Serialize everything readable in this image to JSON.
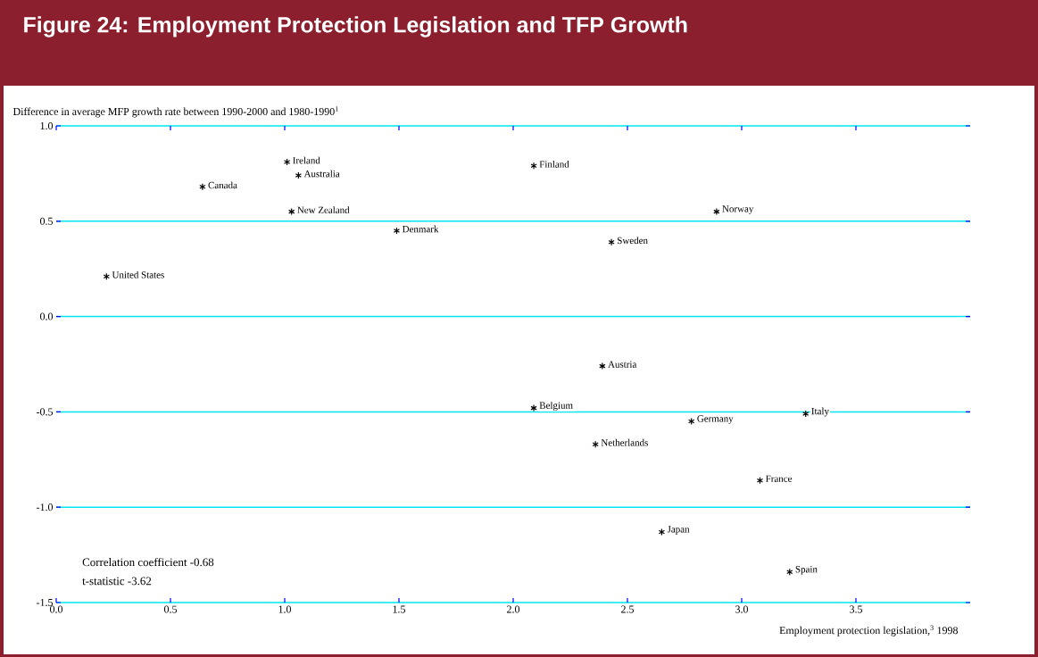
{
  "chart_data": {
    "type": "scatter",
    "title": "Figure 24: Employment Protection Legislation and TFP Growth",
    "xlabel": "Employment protection legislation,$^{3}$ 1998",
    "ylabel": "Difference in average MFP growth rate between 1990-2000 and 1980-1990$^{1}$",
    "x": [
      0.22,
      0.64,
      1.01,
      1.06,
      1.03,
      1.49,
      2.09,
      2.43,
      2.89,
      2.39,
      2.09,
      3.28,
      2.78,
      2.36,
      3.08,
      2.65,
      3.21
    ],
    "values": [
      0.21,
      0.68,
      0.81,
      0.74,
      0.55,
      0.45,
      0.79,
      0.39,
      0.55,
      -0.26,
      -0.48,
      -0.51,
      -0.55,
      -0.67,
      -0.86,
      -1.13,
      -1.34
    ],
    "color": "#000000",
    "marker": "cross",
    "grid": "y",
    "xlim": [
      0,
      4.0
    ],
    "ylim": [
      -1.5,
      1.0
    ],
    "xticks": [
      {
        "value": 0,
        "label": "0.0"
      },
      {
        "value": 0.5,
        "label": "0.5"
      },
      {
        "value": 1,
        "label": "1.0"
      },
      {
        "value": 1.5,
        "label": "1.5"
      },
      {
        "value": 2,
        "label": "2.0"
      },
      {
        "value": 2.5,
        "label": "2.5"
      },
      {
        "value": 3,
        "label": "3.0"
      },
      {
        "value": 3.5,
        "label": "3.5"
      }
    ],
    "yticks": [
      {
        "value": -1.5,
        "label": "-1.5"
      },
      {
        "value": -1,
        "label": "-1.0"
      },
      {
        "value": -0.5,
        "label": "-0.5"
      },
      {
        "value": 0,
        "label": "0.0"
      },
      {
        "value": 0.5,
        "label": "0.5"
      },
      {
        "value": 1,
        "label": "1.0"
      }
    ],
    "annotations": [
      {
        "text": "United States",
        "x": 0.22,
        "y": 0.21
      },
      {
        "text": "Canada",
        "x": 0.64,
        "y": 0.68
      },
      {
        "text": "Ireland",
        "x": 1.01,
        "y": 0.81
      },
      {
        "text": "Australia",
        "x": 1.06,
        "y": 0.74
      },
      {
        "text": "New Zealand",
        "x": 1.03,
        "y": 0.55
      },
      {
        "text": "Denmark",
        "x": 1.49,
        "y": 0.45
      },
      {
        "text": "Finland",
        "x": 2.09,
        "y": 0.79
      },
      {
        "text": "Sweden",
        "x": 2.43,
        "y": 0.39
      },
      {
        "text": "Norway",
        "x": 2.89,
        "y": 0.55
      },
      {
        "text": "Austria",
        "x": 2.39,
        "y": -0.26
      },
      {
        "text": "Belgium",
        "x": 2.09,
        "y": -0.48
      },
      {
        "text": "Italy",
        "x": 3.28,
        "y": -0.51
      },
      {
        "text": "Germany",
        "x": 2.78,
        "y": -0.55
      },
      {
        "text": "Netherlands",
        "x": 2.36,
        "y": -0.67
      },
      {
        "text": "France",
        "x": 3.08,
        "y": -0.86
      },
      {
        "text": "Japan",
        "x": 2.65,
        "y": -1.13
      },
      {
        "text": "Spain",
        "x": 3.21,
        "y": -1.34
      },
      "Correlation coefficient -0.68",
      "t-statistic -3.62"
    ]
  }
}
